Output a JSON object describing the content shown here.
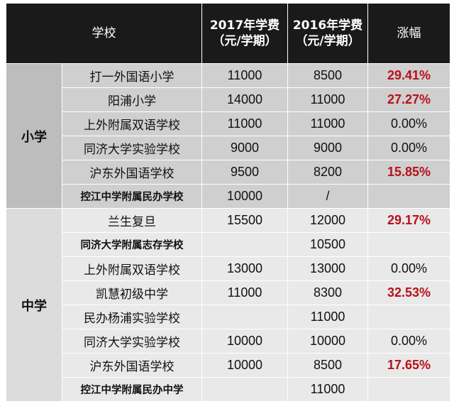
{
  "header": {
    "school": "学校",
    "fee2017_line1": "2017年学费",
    "fee2017_line2": "（元/学期）",
    "fee2016_line1": "2016年学费",
    "fee2016_line2": "（元/学期）",
    "change": "涨幅"
  },
  "groups": [
    {
      "category": "小学",
      "rows": [
        {
          "school": "打一外国语小学",
          "fee2017": "11000",
          "fee2016": "8500",
          "change": "29.41%"
        },
        {
          "school": "阳浦小学",
          "fee2017": "14000",
          "fee2016": "11000",
          "change": "27.27%"
        },
        {
          "school": "上外附属双语学校",
          "fee2017": "11000",
          "fee2016": "11000",
          "change": "0.00%"
        },
        {
          "school": "同济大学实验学校",
          "fee2017": "9000",
          "fee2016": "9000",
          "change": "0.00%"
        },
        {
          "school": "沪东外国语学校",
          "fee2017": "9500",
          "fee2016": "8200",
          "change": "15.85%"
        },
        {
          "school": "控江中学附属民办学校",
          "fee2017": "10000",
          "fee2016": "/",
          "change": ""
        }
      ]
    },
    {
      "category": "中学",
      "rows": [
        {
          "school": "兰生复旦",
          "fee2017": "15500",
          "fee2016": "12000",
          "change": "29.17%"
        },
        {
          "school": "同济大学附属志存学校",
          "fee2017": "",
          "fee2016": "10500",
          "change": ""
        },
        {
          "school": "上外附属双语学校",
          "fee2017": "13000",
          "fee2016": "13000",
          "change": "0.00%"
        },
        {
          "school": "凯慧初级中学",
          "fee2017": "11000",
          "fee2016": "8300",
          "change": "32.53%"
        },
        {
          "school": "民办杨浦实验学校",
          "fee2017": "",
          "fee2016": "11000",
          "change": ""
        },
        {
          "school": "同济大学实验学校",
          "fee2017": "10000",
          "fee2016": "10000",
          "change": "0.00%"
        },
        {
          "school": "沪东外国语学校",
          "fee2017": "10000",
          "fee2016": "8500",
          "change": "17.65%"
        },
        {
          "school": "控江中学附属民办中学",
          "fee2017": "",
          "fee2016": "11000",
          "change": ""
        }
      ]
    }
  ],
  "colors": {
    "header_bg": "#1a1a1a",
    "primary_bg": "#cfcfcf",
    "secondary_bg": "#e9e9e9",
    "increase_text": "#b8121b"
  }
}
